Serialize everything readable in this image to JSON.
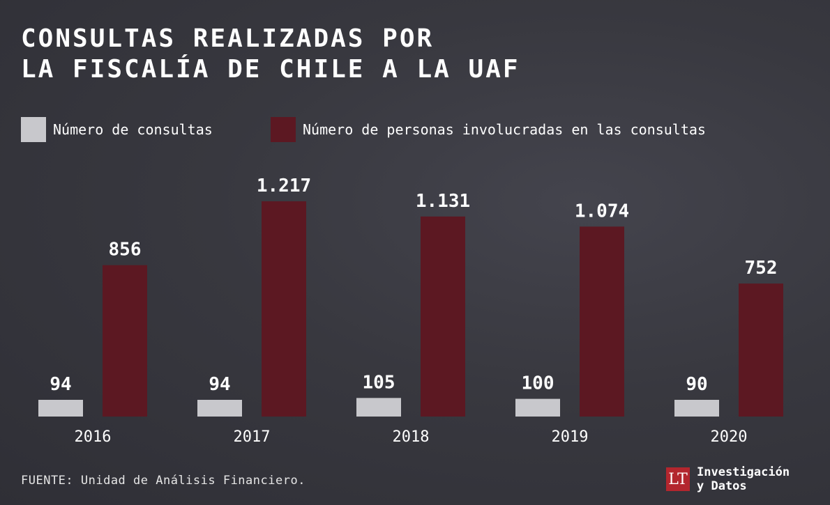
{
  "title_lines": [
    "CONSULTAS REALIZADAS POR",
    "LA FISCALÍA DE CHILE A LA UAF"
  ],
  "legend": [
    {
      "label": "Número de consultas",
      "color": "#c8c8cc"
    },
    {
      "label": "Número de personas involucradas en las consultas",
      "color": "#5c1822"
    }
  ],
  "chart_data": {
    "type": "bar",
    "title": "CONSULTAS REALIZADAS POR LA FISCALÍA DE CHILE A LA UAF",
    "categories": [
      "2016",
      "2017",
      "2018",
      "2019",
      "2020"
    ],
    "series": [
      {
        "name": "Número de consultas",
        "values": [
          94,
          94,
          105,
          100,
          90
        ],
        "labels": [
          "94",
          "94",
          "105",
          "100",
          "90"
        ],
        "color": "#c8c8cc"
      },
      {
        "name": "Número de personas involucradas en las consultas",
        "values": [
          856,
          1217,
          1131,
          1074,
          752
        ],
        "labels": [
          "856",
          "1.217",
          "1.131",
          "1.074",
          "752"
        ],
        "color": "#5c1822"
      }
    ],
    "ylim": [
      0,
      1217
    ],
    "grid": false,
    "legend_position": "top-left"
  },
  "footer": "FUENTE: Unidad de Análisis Financiero.",
  "brand": {
    "logo": "LT",
    "line1": "Investigación",
    "line2": "y Datos"
  }
}
